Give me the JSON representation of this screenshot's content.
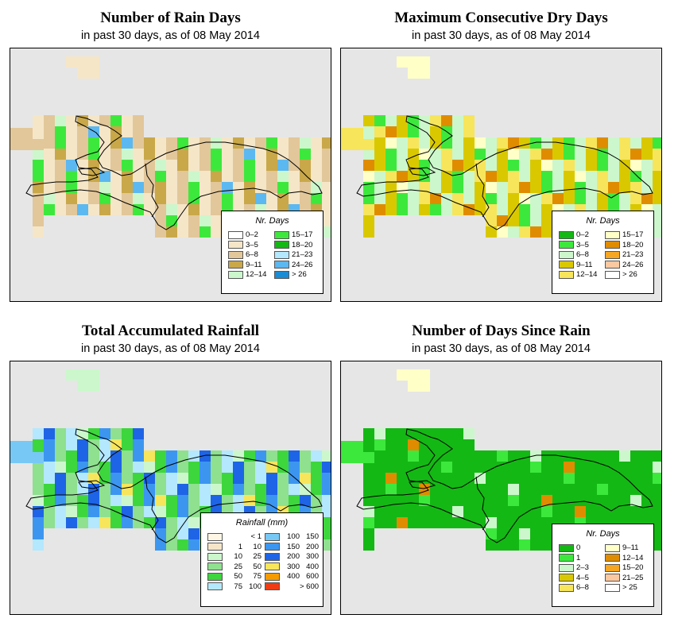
{
  "colors": {
    "background": "#e6e6e6",
    "coastline": "#000000"
  },
  "panels": [
    {
      "id": "rain_days",
      "title": "Number of Rain Days",
      "subtitle": "in past 30 days, as of  08 May 2014",
      "legend": {
        "title": "Nr. Days",
        "items": [
          {
            "label": "0–2",
            "color": "#ffffff"
          },
          {
            "label": "3–5",
            "color": "#f5e6c8"
          },
          {
            "label": "6–8",
            "color": "#e2c79a"
          },
          {
            "label": "9–11",
            "color": "#c9a84a"
          },
          {
            "label": "12–14",
            "color": "#ccf7cc"
          },
          {
            "label": "15–17",
            "color": "#3de83d"
          },
          {
            "label": "18–20",
            "color": "#14b814"
          },
          {
            "label": "21–23",
            "color": "#b4e8ff"
          },
          {
            "label": "24–26",
            "color": "#5cb8f0"
          },
          {
            "label": "> 26",
            "color": "#1a8cd6"
          }
        ]
      }
    },
    {
      "id": "dry_days",
      "title": "Maximum Consecutive Dry Days",
      "subtitle": "in past 30 days, as of  08 May 2014",
      "legend": {
        "title": "Nr. Days",
        "items": [
          {
            "label": "0–2",
            "color": "#14b814"
          },
          {
            "label": "3–5",
            "color": "#3de83d"
          },
          {
            "label": "6–8",
            "color": "#ccf7cc"
          },
          {
            "label": "9–11",
            "color": "#d9c800"
          },
          {
            "label": "12–14",
            "color": "#f7e55c"
          },
          {
            "label": "15–17",
            "color": "#ffffc8"
          },
          {
            "label": "18–20",
            "color": "#e08c00"
          },
          {
            "label": "21–23",
            "color": "#f5a623"
          },
          {
            "label": "24–26",
            "color": "#fcc8a0"
          },
          {
            "label": "> 26",
            "color": "#ffffff"
          }
        ]
      }
    },
    {
      "id": "rainfall",
      "title": "Total Accumulated Rainfall",
      "subtitle": "in past 30 days, as of  08 May 2014",
      "legend": {
        "title": "Rainfall (mm)",
        "items": [
          {
            "a": "",
            "b": "< 1",
            "color": "#fff6e6"
          },
          {
            "a": "1",
            "b": "10",
            "color": "#f5e6c8"
          },
          {
            "a": "10",
            "b": "25",
            "color": "#ccf7cc"
          },
          {
            "a": "25",
            "b": "50",
            "color": "#8fe08f"
          },
          {
            "a": "50",
            "b": "75",
            "color": "#3dd63d"
          },
          {
            "a": "75",
            "b": "100",
            "color": "#b4e8ff"
          },
          {
            "a": "100",
            "b": "150",
            "color": "#78c8f5"
          },
          {
            "a": "150",
            "b": "200",
            "color": "#3c96f0"
          },
          {
            "a": "200",
            "b": "300",
            "color": "#1e64e6"
          },
          {
            "a": "300",
            "b": "400",
            "color": "#f7e55c"
          },
          {
            "a": "400",
            "b": "600",
            "color": "#f59b00"
          },
          {
            "a": "",
            "b": "> 600",
            "color": "#f03c14"
          }
        ]
      }
    },
    {
      "id": "since_rain",
      "title": "Number of Days Since Rain",
      "subtitle": "in past 30 days, as of  08 May 2014",
      "legend": {
        "title": "Nr. Days",
        "items": [
          {
            "label": "0",
            "color": "#14b814"
          },
          {
            "label": "1",
            "color": "#3de83d"
          },
          {
            "label": "2–3",
            "color": "#ccf7cc"
          },
          {
            "label": "4–5",
            "color": "#d9c800"
          },
          {
            "label": "6–8",
            "color": "#f7e55c"
          },
          {
            "label": "9–11",
            "color": "#ffffc8"
          },
          {
            "label": "12–14",
            "color": "#e08c00"
          },
          {
            "label": "15–20",
            "color": "#f5a623"
          },
          {
            "label": "21–25",
            "color": "#fcc8a0"
          },
          {
            "label": "> 25",
            "color": "#ffffff"
          }
        ]
      }
    }
  ]
}
